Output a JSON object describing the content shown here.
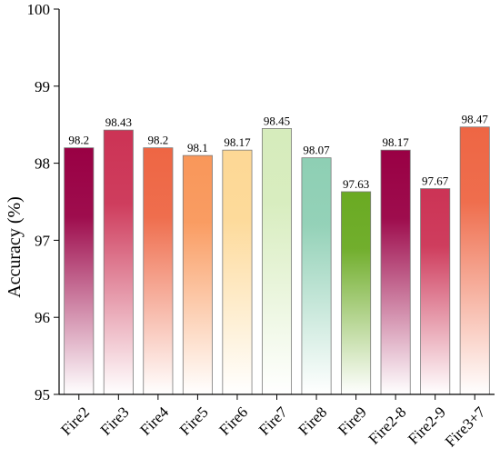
{
  "chart_data": {
    "type": "bar",
    "title": "",
    "xlabel": "",
    "ylabel": "Accuracy (%)",
    "ylim": [
      95,
      100
    ],
    "yticks": [
      95,
      96,
      97,
      98,
      99,
      100
    ],
    "grid": false,
    "legend": "none",
    "categories": [
      "Fire2",
      "Fire3",
      "Fire4",
      "Fire5",
      "Fire6",
      "Fire7",
      "Fire8",
      "Fire9",
      "Fire2-8",
      "Fire2-9",
      "Fire3+7"
    ],
    "values": [
      98.2,
      98.43,
      98.2,
      98.1,
      98.17,
      98.45,
      98.07,
      97.63,
      98.17,
      97.67,
      98.47
    ],
    "bar_colors": [
      "#990044",
      "#cc3355",
      "#ee6644",
      "#f9975a",
      "#fdd895",
      "#d6ecbc",
      "#8ecfb4",
      "#6aaa22",
      "#990044",
      "#cc3355",
      "#ee6644"
    ],
    "data_labels": [
      "98.2",
      "98.43",
      "98.2",
      "98.1",
      "98.17",
      "98.45",
      "98.07",
      "97.63",
      "98.17",
      "97.67",
      "98.47"
    ]
  }
}
